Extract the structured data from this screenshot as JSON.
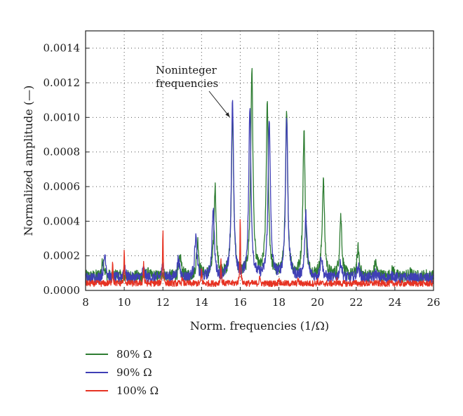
{
  "chart_data": {
    "type": "line",
    "xlabel": "Norm. frequencies (1/Ω)",
    "ylabel": "Normalized amplitude (—)",
    "xlim": [
      8,
      26
    ],
    "ylim": [
      0,
      0.0015
    ],
    "x_ticks": [
      8,
      10,
      12,
      14,
      16,
      18,
      20,
      22,
      24,
      26
    ],
    "x_tick_labels": [
      "8",
      "10",
      "12",
      "14",
      "16",
      "18",
      "20",
      "22",
      "24",
      "26"
    ],
    "y_ticks": [
      0,
      0.0002,
      0.0004,
      0.0006,
      0.0008,
      0.001,
      0.0012,
      0.0014
    ],
    "y_tick_labels": [
      "0.0000",
      "0.0002",
      "0.0004",
      "0.0006",
      "0.0008",
      "0.0010",
      "0.0012",
      "0.0014"
    ],
    "grid": true,
    "legend_position": "bottom-left, below plot",
    "annotation": {
      "lines": [
        "Noninteger",
        "frequencies"
      ],
      "arrow_to": [
        15.6,
        0.00101
      ]
    },
    "series": [
      {
        "name": "80% Ω",
        "color": "#2e7d32",
        "baseline": 8e-05,
        "peaks": [
          [
            8.9,
            0.00018
          ],
          [
            9.6,
            9e-05
          ],
          [
            10.3,
            8e-05
          ],
          [
            11.2,
            0.0001
          ],
          [
            12.0,
            0.0001
          ],
          [
            12.9,
            0.00019
          ],
          [
            13.8,
            0.00028
          ],
          [
            14.7,
            0.00059
          ],
          [
            15.6,
            0.00101
          ],
          [
            16.6,
            0.00126
          ],
          [
            17.4,
            0.00105
          ],
          [
            18.4,
            0.00101
          ],
          [
            19.3,
            0.0009
          ],
          [
            20.3,
            0.00063
          ],
          [
            21.2,
            0.00042
          ],
          [
            22.1,
            0.00024
          ],
          [
            23.0,
            0.00016
          ],
          [
            23.9,
            0.00012
          ],
          [
            24.8,
            0.0001
          ],
          [
            25.6,
            9e-05
          ]
        ]
      },
      {
        "name": "90% Ω",
        "color": "#3f3fb5",
        "baseline": 7e-05,
        "peaks": [
          [
            9.0,
            0.00021
          ],
          [
            10.0,
            0.00013
          ],
          [
            11.0,
            0.00012
          ],
          [
            12.0,
            0.00014
          ],
          [
            12.8,
            0.00018
          ],
          [
            13.7,
            0.00031
          ],
          [
            14.6,
            0.00046
          ],
          [
            15.6,
            0.00108
          ],
          [
            16.5,
            0.00104
          ],
          [
            17.5,
            0.00099
          ],
          [
            18.4,
            0.00099
          ],
          [
            19.4,
            0.00043
          ],
          [
            20.2,
            0.00019
          ],
          [
            21.2,
            0.00016
          ],
          [
            22.1,
            0.00014
          ],
          [
            23.0,
            0.0001
          ],
          [
            23.9,
            9e-05
          ]
        ]
      },
      {
        "name": "100% Ω",
        "color": "#e63222",
        "baseline": 4e-05,
        "peaks": [
          [
            9.4,
            0.00018
          ],
          [
            10.0,
            0.00024
          ],
          [
            11.0,
            0.00017
          ],
          [
            12.0,
            0.00036
          ],
          [
            13.0,
            8e-05
          ],
          [
            14.0,
            0.00012
          ],
          [
            15.0,
            0.00019
          ],
          [
            16.0,
            0.00045
          ],
          [
            17.0,
            9e-05
          ],
          [
            18.0,
            8e-05
          ],
          [
            19.0,
            7e-05
          ],
          [
            20.0,
            6e-05
          ],
          [
            21.0,
            6e-05
          ],
          [
            22.0,
            5e-05
          ],
          [
            23.0,
            5e-05
          ]
        ]
      }
    ]
  }
}
